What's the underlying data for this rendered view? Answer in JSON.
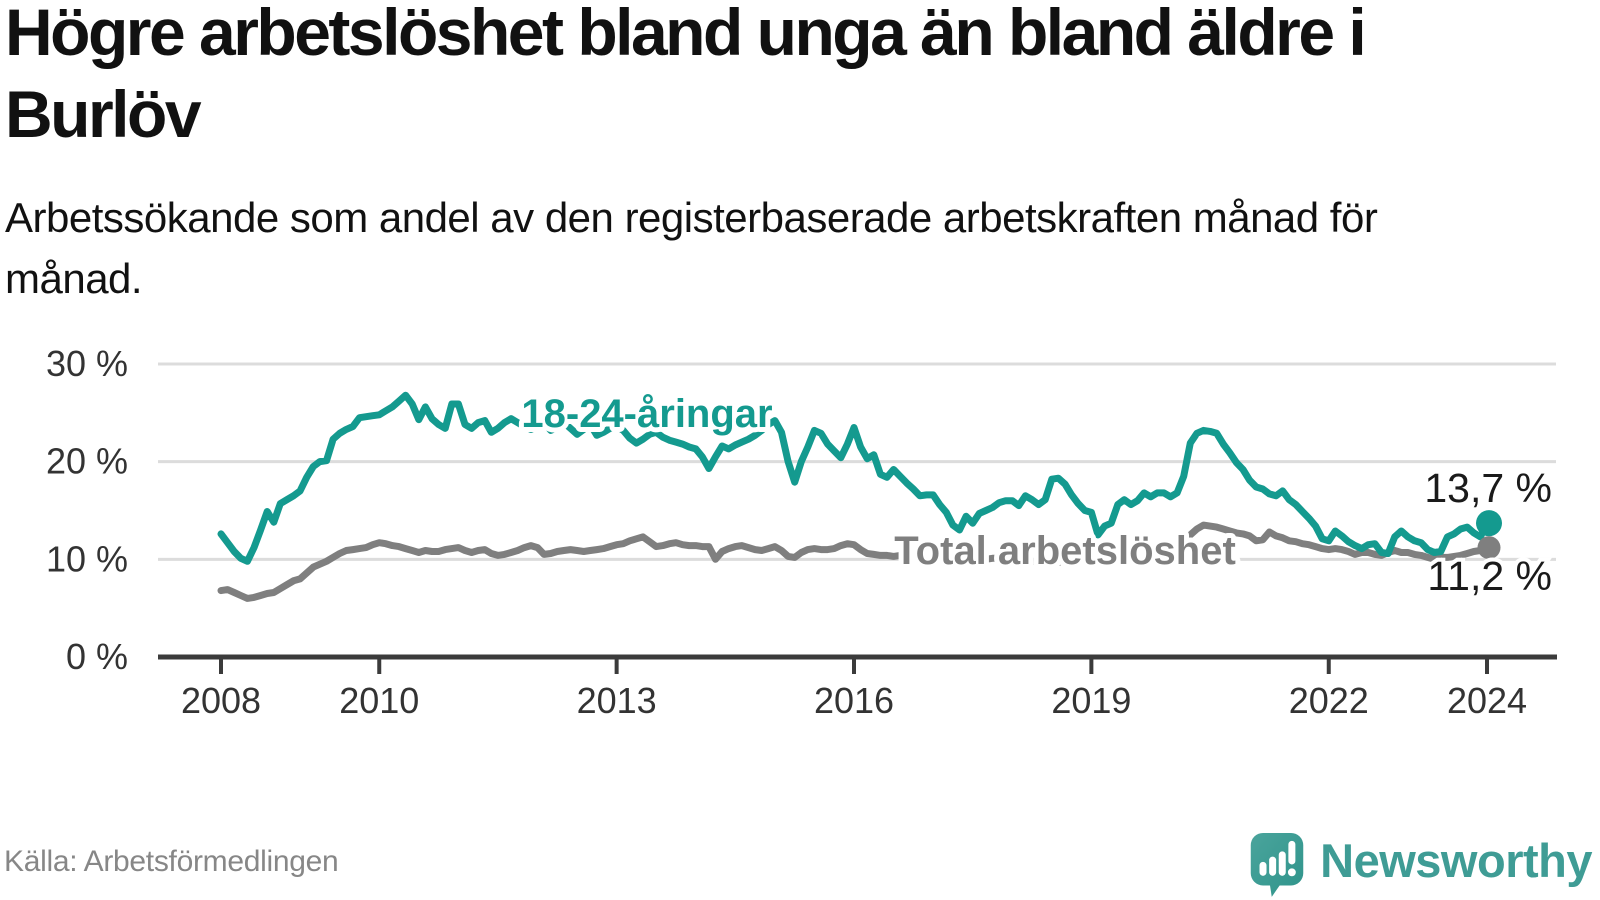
{
  "title": "Högre arbetslöshet bland unga än bland äldre i Burlöv",
  "subtitle": "Arbetssökande som andel av den registerbaserade arbetskraften månad för månad.",
  "source": "Källa: Arbetsförmedlingen",
  "brand": {
    "name": "Newsworthy",
    "icon": "speech-bubble-bar-chart-icon",
    "color": "#3f9c95"
  },
  "colors": {
    "youth_line": "#149a8f",
    "total_line": "#7f7f7f",
    "axis": "#3b3b3b",
    "grid": "#dcdcdc",
    "tick_text": "#333333",
    "value_label_text": "#1a1a1a"
  },
  "chart_data": {
    "type": "line",
    "x_interval": "monthly",
    "x_start_year": 2008,
    "x_end_label_note": "last point Jan 2024",
    "grid": "horizontal",
    "legend_position": "inline-labels",
    "ylim": [
      0,
      31.5
    ],
    "y_ticks": [
      {
        "value": 30,
        "label": "30 %"
      },
      {
        "value": 20,
        "label": "20 %"
      },
      {
        "value": 10,
        "label": "10 %"
      },
      {
        "value": 0,
        "label": "0 %"
      }
    ],
    "x_ticks": [
      {
        "year": 2008,
        "label": "2008"
      },
      {
        "year": 2010,
        "label": "2010"
      },
      {
        "year": 2013,
        "label": "2013"
      },
      {
        "year": 2016,
        "label": "2016"
      },
      {
        "year": 2019,
        "label": "2019"
      },
      {
        "year": 2022,
        "label": "2022"
      },
      {
        "year": 2024,
        "label": "2024"
      }
    ],
    "series": [
      {
        "name": "Total arbetslöshet",
        "color": "#7f7f7f",
        "end_value": 11.2,
        "end_label": "11,2 %",
        "values": [
          6.8,
          6.9,
          6.6,
          6.3,
          6.0,
          6.1,
          6.3,
          6.5,
          6.6,
          7.0,
          7.4,
          7.8,
          8.0,
          8.6,
          9.2,
          9.5,
          9.8,
          10.2,
          10.6,
          10.9,
          11.0,
          11.1,
          11.2,
          11.5,
          11.7,
          11.6,
          11.4,
          11.3,
          11.1,
          10.9,
          10.7,
          10.9,
          10.8,
          10.8,
          11.0,
          11.1,
          11.2,
          10.9,
          10.7,
          10.9,
          11.0,
          10.6,
          10.4,
          10.5,
          10.7,
          10.9,
          11.2,
          11.4,
          11.2,
          10.5,
          10.6,
          10.8,
          10.9,
          11.0,
          10.9,
          10.8,
          10.9,
          11.0,
          11.1,
          11.3,
          11.5,
          11.6,
          11.9,
          12.1,
          12.3,
          11.8,
          11.3,
          11.4,
          11.6,
          11.7,
          11.5,
          11.4,
          11.4,
          11.3,
          11.3,
          10.0,
          10.8,
          11.1,
          11.3,
          11.4,
          11.2,
          11.0,
          10.9,
          11.1,
          11.3,
          10.9,
          10.3,
          10.2,
          10.7,
          11.0,
          11.1,
          11.0,
          11.0,
          11.1,
          11.4,
          11.6,
          11.5,
          11.0,
          10.6,
          10.5,
          10.4,
          10.4,
          10.3,
          10.4,
          10.4,
          10.5,
          10.5,
          10.6,
          10.5,
          10.4,
          10.3,
          10.2,
          10.1,
          10.2,
          10.1,
          10.0,
          10.0,
          10.1,
          10.1,
          10.2,
          10.1,
          10.0,
          9.9,
          9.8,
          9.8,
          9.9,
          9.8,
          9.7,
          9.8,
          9.9,
          9.9,
          10.0,
          10.0,
          9.9,
          9.8,
          9.9,
          10.0,
          10.0,
          10.1,
          10.1,
          10.2,
          10.3,
          10.4,
          10.6,
          10.8,
          11.0,
          11.6,
          12.5,
          13.1,
          13.5,
          13.4,
          13.3,
          13.1,
          12.9,
          12.7,
          12.6,
          12.4,
          11.9,
          12.0,
          12.8,
          12.4,
          12.2,
          11.9,
          11.8,
          11.6,
          11.5,
          11.3,
          11.1,
          11.0,
          11.1,
          11.0,
          10.8,
          10.5,
          10.7,
          10.7,
          10.5,
          10.4,
          10.7,
          10.9,
          10.7,
          10.7,
          10.5,
          10.4,
          10.2,
          10.0,
          10.2,
          10.2,
          10.3,
          10.4,
          10.6,
          10.8,
          10.9,
          11.2
        ]
      },
      {
        "name": "18-24-åringar",
        "color": "#149a8f",
        "end_value": 13.7,
        "end_label": "13,7 %",
        "values": [
          12.6,
          11.7,
          10.8,
          10.1,
          9.8,
          11.2,
          13.0,
          14.9,
          13.8,
          15.7,
          16.1,
          16.5,
          17.0,
          18.4,
          19.5,
          20.0,
          20.1,
          22.3,
          22.9,
          23.3,
          23.6,
          24.5,
          24.6,
          24.7,
          24.8,
          25.2,
          25.6,
          26.2,
          26.8,
          25.9,
          24.3,
          25.6,
          24.4,
          23.8,
          23.4,
          25.9,
          25.9,
          23.8,
          23.4,
          24.0,
          24.2,
          23.0,
          23.4,
          24.0,
          24.4,
          24.0,
          23.6,
          23.3,
          23.6,
          24.0,
          23.2,
          23.5,
          24.0,
          23.4,
          22.8,
          23.3,
          23.8,
          22.7,
          23.0,
          23.4,
          23.6,
          23.2,
          22.4,
          21.9,
          22.3,
          22.8,
          23.0,
          22.5,
          22.2,
          22.0,
          21.8,
          21.5,
          21.3,
          20.5,
          19.3,
          20.5,
          21.6,
          21.3,
          21.7,
          22.0,
          22.3,
          22.7,
          23.2,
          23.8,
          24.2,
          23.0,
          20.0,
          17.9,
          20.0,
          21.5,
          23.2,
          22.9,
          21.8,
          21.1,
          20.4,
          21.8,
          23.5,
          21.5,
          20.3,
          20.7,
          18.7,
          18.4,
          19.2,
          18.5,
          17.8,
          17.2,
          16.5,
          16.6,
          16.6,
          15.6,
          14.8,
          13.5,
          13.0,
          14.4,
          13.7,
          14.7,
          15.0,
          15.3,
          15.8,
          16.0,
          16.0,
          15.5,
          16.5,
          16.1,
          15.6,
          16.1,
          18.2,
          18.3,
          17.7,
          16.6,
          15.7,
          15.0,
          14.8,
          12.5,
          13.4,
          13.7,
          15.6,
          16.1,
          15.6,
          16.0,
          16.8,
          16.4,
          16.8,
          16.8,
          16.4,
          16.8,
          18.5,
          21.9,
          22.9,
          23.2,
          23.1,
          22.9,
          21.8,
          20.9,
          19.9,
          19.2,
          18.1,
          17.4,
          17.2,
          16.7,
          16.5,
          17.0,
          16.1,
          15.6,
          14.9,
          14.2,
          13.4,
          12.1,
          11.9,
          12.9,
          12.4,
          11.8,
          11.4,
          11.1,
          11.5,
          11.6,
          10.7,
          10.6,
          12.3,
          12.9,
          12.3,
          11.9,
          11.7,
          11.0,
          10.7,
          10.8,
          12.3,
          12.6,
          13.1,
          13.3,
          12.7,
          12.3,
          13.7
        ]
      }
    ]
  }
}
